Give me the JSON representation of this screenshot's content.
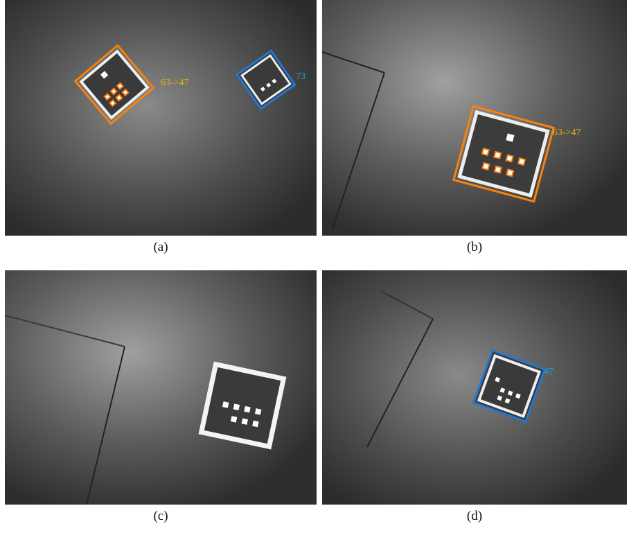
{
  "panels": [
    {
      "caption": "(a)",
      "annotations": [
        {
          "label": "63->47"
        },
        {
          "label": "73"
        }
      ]
    },
    {
      "caption": "(b)",
      "annotations": [
        {
          "label": "63->47"
        }
      ]
    },
    {
      "caption": "(c)",
      "annotations": []
    },
    {
      "caption": "(d)",
      "annotations": [
        {
          "label": "47"
        }
      ]
    }
  ]
}
